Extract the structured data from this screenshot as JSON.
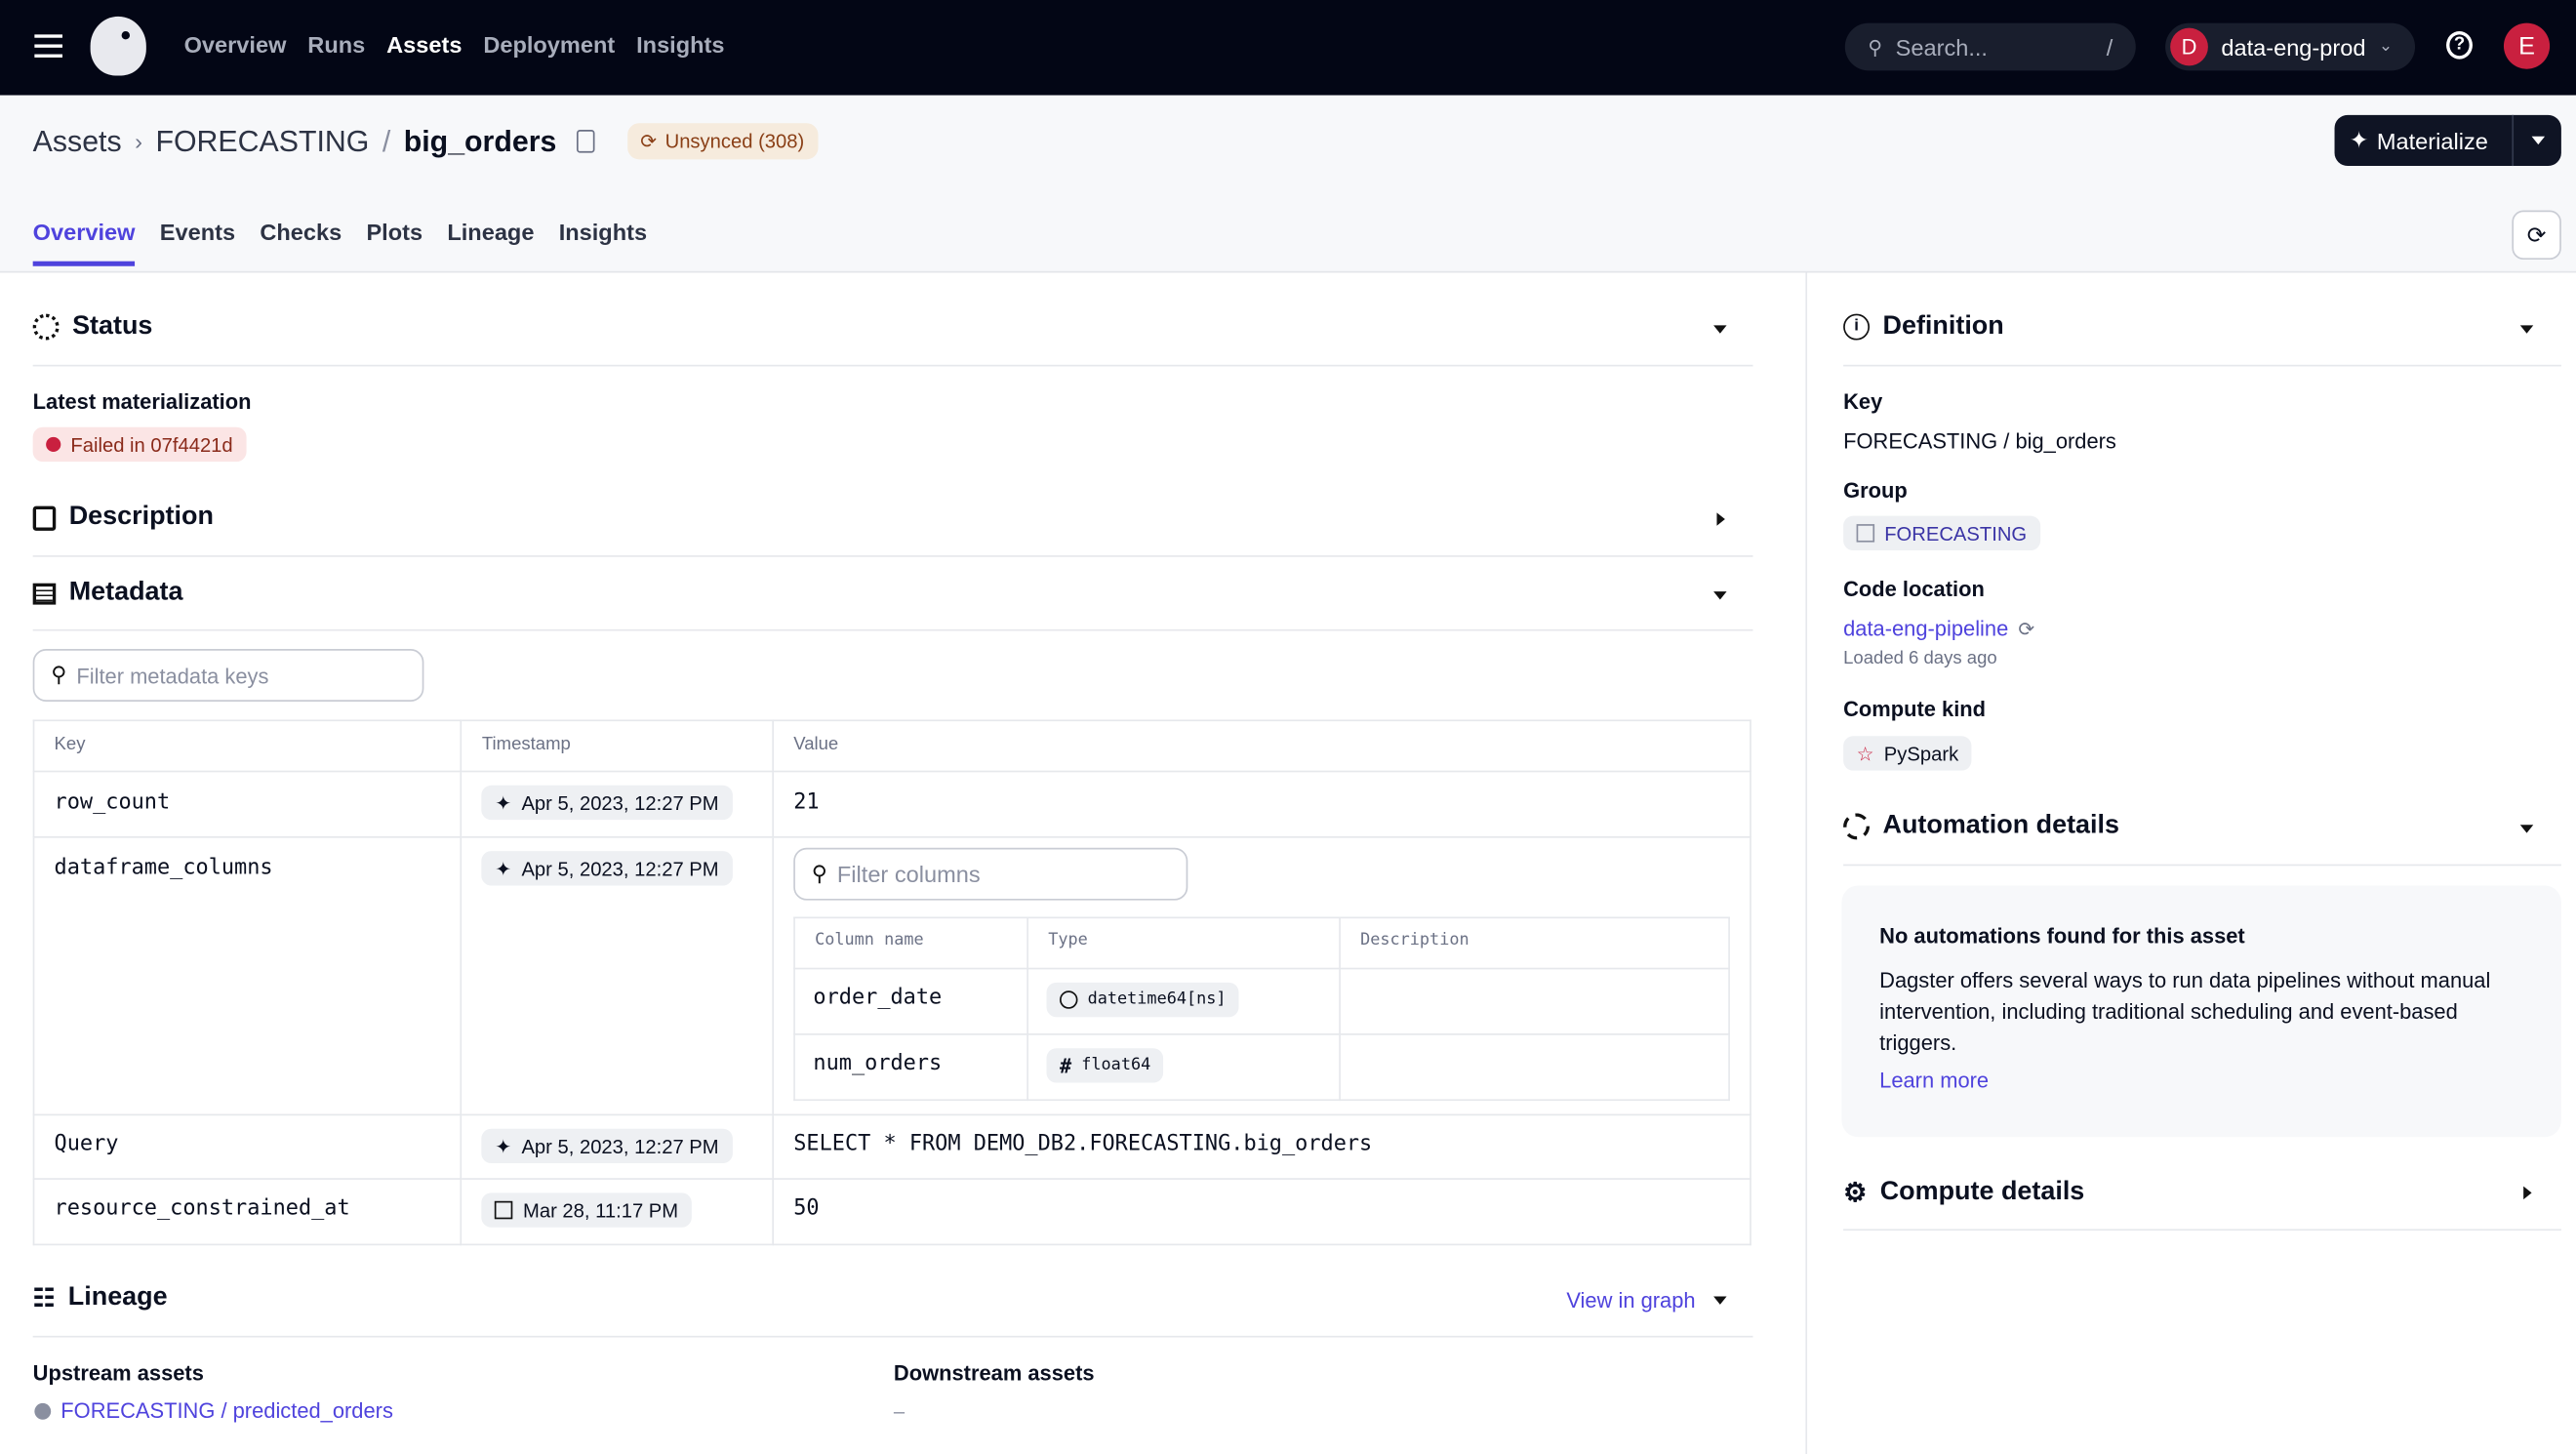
{
  "topbar": {
    "nav": [
      "Overview",
      "Runs",
      "Assets",
      "Deployment",
      "Insights"
    ],
    "active": "Assets",
    "search_placeholder": "Search...",
    "search_shortcut": "/",
    "deployment": "data-eng-prod",
    "deployment_initial": "D",
    "user_initial": "E"
  },
  "header": {
    "crumb_root": "Assets",
    "crumb_group": "FORECASTING",
    "crumb_sep": "/",
    "asset": "big_orders",
    "sync_badge": "Unsynced (308)",
    "materialize": "Materialize"
  },
  "tabs": [
    "Overview",
    "Events",
    "Checks",
    "Plots",
    "Lineage",
    "Insights"
  ],
  "status": {
    "title": "Status",
    "latest_label": "Latest materialization",
    "badge": "Failed in 07f4421d"
  },
  "description": {
    "title": "Description"
  },
  "metadata": {
    "title": "Metadata",
    "filter_placeholder": "Filter metadata keys",
    "headers": [
      "Key",
      "Timestamp",
      "Value"
    ],
    "rows": [
      {
        "key": "row_count",
        "timestamp": "Apr 5, 2023, 12:27 PM",
        "value": "21"
      },
      {
        "key": "dataframe_columns",
        "timestamp": "Apr 5, 2023, 12:27 PM",
        "filter_placeholder": "Filter columns",
        "col_headers": [
          "Column name",
          "Type",
          "Description"
        ],
        "columns": [
          {
            "name": "order_date",
            "type": "datetime64[ns]",
            "icon": "clock-icon"
          },
          {
            "name": "num_orders",
            "type": "float64",
            "icon": "hash-icon"
          }
        ]
      },
      {
        "key": "Query",
        "timestamp": "Apr 5, 2023, 12:27 PM",
        "value": "SELECT * FROM DEMO_DB2.FORECASTING.big_orders"
      },
      {
        "key": "resource_constrained_at",
        "timestamp": "Mar 28, 11:17 PM",
        "value": "50"
      }
    ]
  },
  "lineage": {
    "title": "Lineage",
    "view_graph": "View in graph",
    "upstream_label": "Upstream assets",
    "upstream": "FORECASTING / predicted_orders",
    "downstream_label": "Downstream assets",
    "downstream": "–"
  },
  "definition": {
    "title": "Definition",
    "key_label": "Key",
    "key": "FORECASTING / big_orders",
    "group_label": "Group",
    "group": "FORECASTING",
    "code_label": "Code location",
    "code": "data-eng-pipeline",
    "loaded": "Loaded 6 days ago",
    "compute_label": "Compute kind",
    "compute": "PySpark"
  },
  "automation": {
    "title": "Automation details",
    "box_title": "No automations found for this asset",
    "box_text": "Dagster offers several ways to run data pipelines without manual intervention, including traditional scheduling and event-based triggers.",
    "learn_more": "Learn more"
  },
  "compute_details": {
    "title": "Compute details"
  },
  "colors": {
    "topbar": "#030615",
    "accent": "#4f43dd",
    "failed": "#c9203f",
    "unsynced_bg": "#f6ebdd"
  }
}
